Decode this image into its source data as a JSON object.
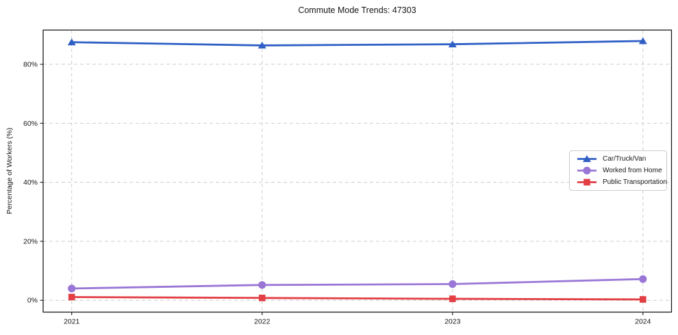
{
  "figure": {
    "background": "#ffffff",
    "text_color": "#151515",
    "grid_color": "#cccccc",
    "spine_color": "#1a1a1a"
  },
  "chart_data": {
    "type": "line",
    "title": "Commute Mode Trends: 47303",
    "xlabel": "",
    "ylabel": "Percentage of Workers (%)",
    "x": [
      2021,
      2022,
      2023,
      2024
    ],
    "x_tick_labels": [
      "2021",
      "2022",
      "2023",
      "2024"
    ],
    "yticks": [
      0,
      20,
      40,
      60,
      80
    ],
    "ytick_labels": [
      "0%",
      "20%",
      "40%",
      "60%",
      "80%"
    ],
    "xlim": [
      2020.85,
      2024.15
    ],
    "ylim": [
      -4.0,
      91.6
    ],
    "grid": true,
    "grid_style": "dashed",
    "legend": {
      "position": "center right",
      "border_color": "#cccccc"
    },
    "series": [
      {
        "name": "Car/Truck/Van",
        "marker": "triangle",
        "color": "#2f5fc5",
        "values": [
          87.5,
          86.4,
          86.8,
          87.9
        ]
      },
      {
        "name": "Worked from Home",
        "marker": "circle",
        "color": "#9a76d6",
        "values": [
          4.0,
          5.2,
          5.5,
          7.2
        ]
      },
      {
        "name": "Public Transportation",
        "marker": "square",
        "color": "#e23e44",
        "values": [
          1.1,
          0.8,
          0.5,
          0.3
        ]
      }
    ]
  }
}
